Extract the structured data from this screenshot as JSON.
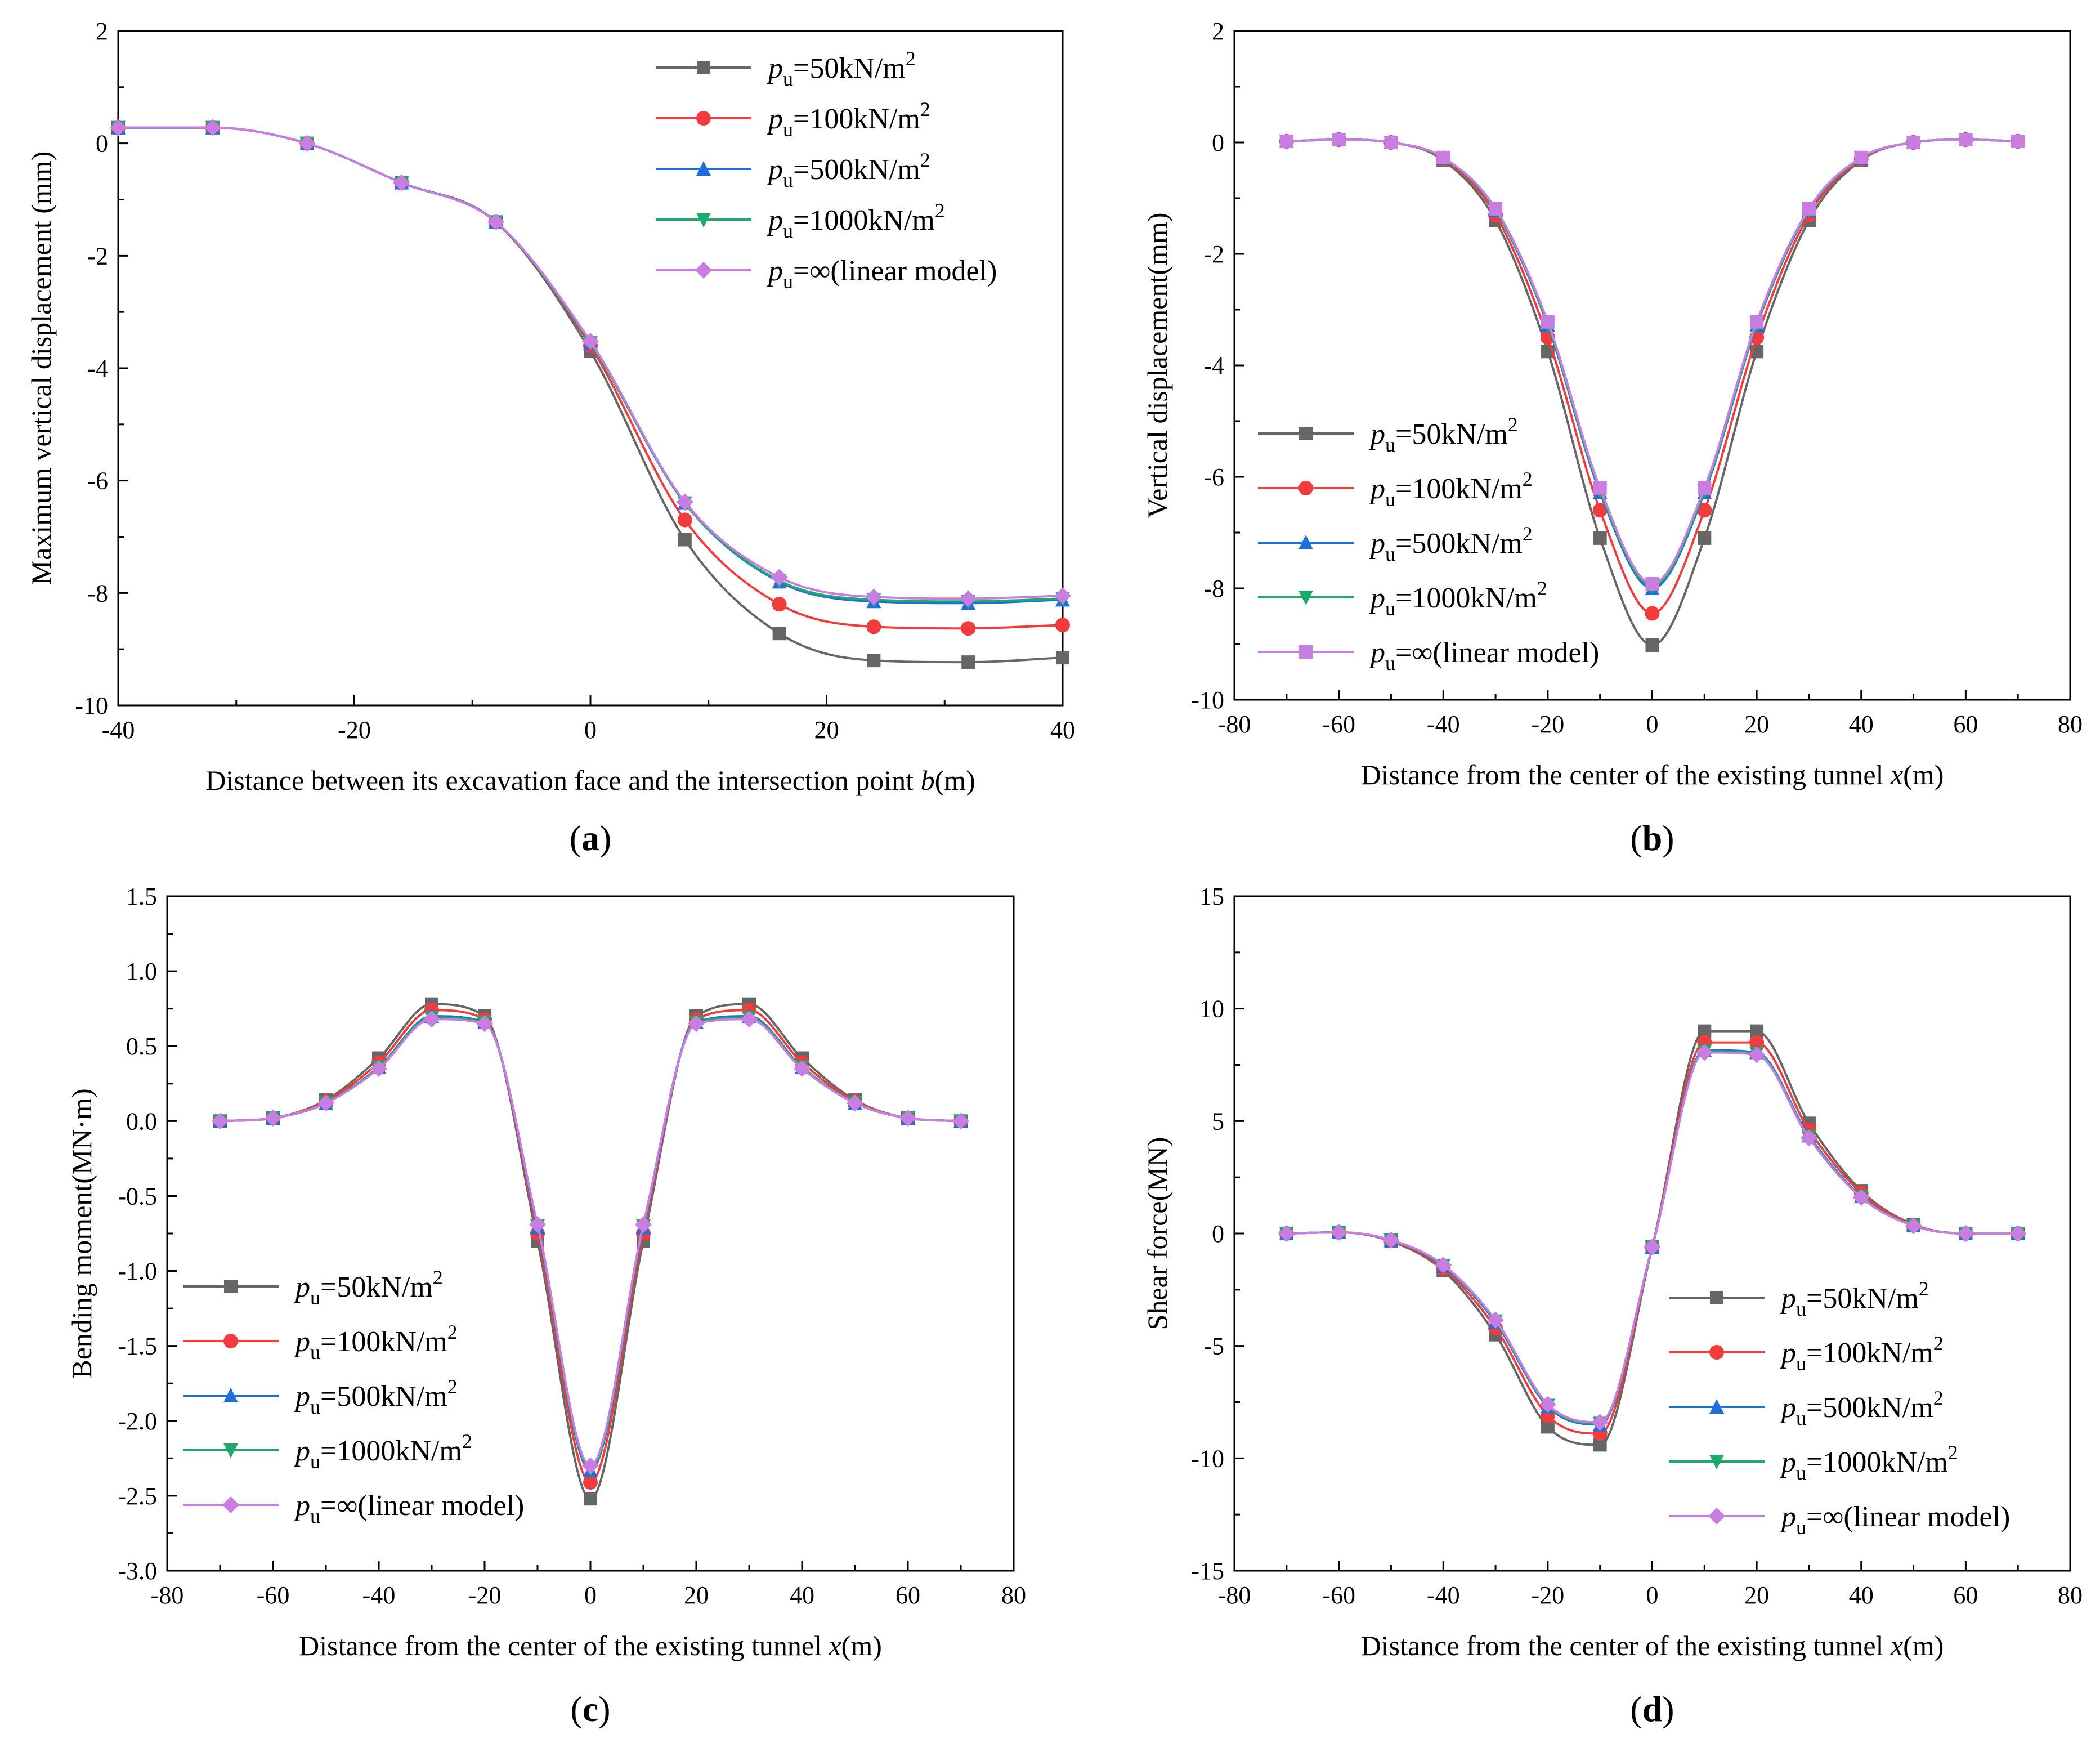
{
  "figure": {
    "legend_prefix": "p",
    "legend_subscript": "u",
    "legend_unit_superscript": "2",
    "panels": [
      "(a)",
      "(b)",
      "(c)",
      "(d)"
    ]
  },
  "chart_data": [
    {
      "id": "a",
      "type": "line",
      "panel_label": "a",
      "xlabel_pre": "Distance between its excavation face and the intersection point ",
      "xlabel_var": "b",
      "xlabel_post": "(m)",
      "ylabel": "Maximum vertical displacement (mm)",
      "xlim": [
        -40,
        40
      ],
      "ylim": [
        -10,
        2
      ],
      "xticks": [
        -40,
        -20,
        0,
        20,
        40
      ],
      "xtick_labels": [
        "-40",
        "-20",
        "0",
        "20",
        "40"
      ],
      "yticks": [
        -10,
        -8,
        -6,
        -4,
        -2,
        0,
        2
      ],
      "ytick_labels": [
        "-10",
        "-8",
        "-6",
        "-4",
        "-2",
        "0",
        "2"
      ],
      "legend_position": "top-right",
      "x": [
        -40,
        -32,
        -24,
        -16,
        -8,
        0,
        8,
        16,
        24,
        32,
        40
      ],
      "series": [
        {
          "name": "=50kN/m",
          "label_suffix": "",
          "color": "#666666",
          "marker": "square",
          "values": [
            0.28,
            0.28,
            0.0,
            -0.7,
            -1.4,
            -3.7,
            -7.05,
            -8.72,
            -9.2,
            -9.23,
            -9.15
          ]
        },
        {
          "name": "=100kN/m",
          "label_suffix": "",
          "color": "#f03c3c",
          "marker": "circle",
          "values": [
            0.28,
            0.28,
            0.0,
            -0.7,
            -1.4,
            -3.6,
            -6.7,
            -8.2,
            -8.6,
            -8.63,
            -8.57
          ]
        },
        {
          "name": "=500kN/m",
          "label_suffix": "",
          "color": "#1f6fd6",
          "marker": "triangle-up",
          "values": [
            0.28,
            0.28,
            0.0,
            -0.7,
            -1.4,
            -3.55,
            -6.4,
            -7.8,
            -8.15,
            -8.18,
            -8.12
          ]
        },
        {
          "name": "=1000kN/m",
          "label_suffix": "",
          "color": "#1fa86b",
          "marker": "triangle-down",
          "values": [
            0.28,
            0.28,
            0.0,
            -0.7,
            -1.4,
            -3.55,
            -6.4,
            -7.78,
            -8.12,
            -8.15,
            -8.1
          ]
        },
        {
          "name": "=∞(linear model)",
          "label_suffix": "",
          "color": "#c77ee0",
          "marker": "diamond",
          "values": [
            0.28,
            0.28,
            0.0,
            -0.7,
            -1.4,
            -3.52,
            -6.38,
            -7.72,
            -8.07,
            -8.1,
            -8.05
          ]
        }
      ]
    },
    {
      "id": "b",
      "type": "line",
      "panel_label": "b",
      "xlabel_pre": "Distance from the center of the existing tunnel ",
      "xlabel_var": "x",
      "xlabel_post": "(m)",
      "ylabel": "Vertical displacement(mm)",
      "xlim": [
        -80,
        80
      ],
      "ylim": [
        -10,
        2
      ],
      "xticks": [
        -80,
        -60,
        -40,
        -20,
        0,
        20,
        40,
        60,
        80
      ],
      "xtick_labels": [
        "-80",
        "-60",
        "-40",
        "-20",
        "0",
        "20",
        "40",
        "60",
        "80"
      ],
      "yticks": [
        -10,
        -8,
        -6,
        -4,
        -2,
        0,
        2
      ],
      "ytick_labels": [
        "-10",
        "-8",
        "-6",
        "-4",
        "-2",
        "0",
        "2"
      ],
      "legend_position": "bottom-left",
      "x": [
        -70,
        -60,
        -50,
        -40,
        -30,
        -20,
        -10,
        0,
        10,
        20,
        30,
        40,
        50,
        60,
        70
      ],
      "series": [
        {
          "name": "=50kN/m",
          "color": "#666666",
          "marker": "square",
          "values": [
            0.02,
            0.05,
            0.0,
            -0.32,
            -1.4,
            -3.75,
            -7.1,
            -9.02,
            -7.1,
            -3.75,
            -1.4,
            -0.32,
            0.0,
            0.05,
            0.02
          ]
        },
        {
          "name": "=100kN/m",
          "color": "#f03c3c",
          "marker": "circle",
          "values": [
            0.02,
            0.05,
            0.0,
            -0.3,
            -1.3,
            -3.5,
            -6.6,
            -8.45,
            -6.6,
            -3.5,
            -1.3,
            -0.3,
            0.0,
            0.05,
            0.02
          ]
        },
        {
          "name": "=500kN/m",
          "color": "#1f6fd6",
          "marker": "triangle-up",
          "values": [
            0.02,
            0.05,
            0.0,
            -0.28,
            -1.22,
            -3.28,
            -6.28,
            -8.0,
            -6.28,
            -3.28,
            -1.22,
            -0.28,
            0.0,
            0.05,
            0.02
          ]
        },
        {
          "name": "=1000kN/m",
          "color": "#1fa86b",
          "marker": "triangle-down",
          "values": [
            0.02,
            0.05,
            0.0,
            -0.28,
            -1.21,
            -3.26,
            -6.25,
            -7.96,
            -6.25,
            -3.26,
            -1.21,
            -0.28,
            0.0,
            0.05,
            0.02
          ]
        },
        {
          "name": "=∞(linear model)",
          "color": "#c77ee0",
          "marker": "square",
          "values": [
            0.02,
            0.05,
            0.0,
            -0.27,
            -1.19,
            -3.22,
            -6.2,
            -7.92,
            -6.2,
            -3.22,
            -1.19,
            -0.27,
            0.0,
            0.05,
            0.02
          ]
        }
      ]
    },
    {
      "id": "c",
      "type": "line",
      "panel_label": "c",
      "xlabel_pre": "Distance from the center of the existing tunnel  ",
      "xlabel_var": "x",
      "xlabel_post": "(m)",
      "ylabel": "Bending moment(MN·m)",
      "xlim": [
        -80,
        80
      ],
      "ylim": [
        -3.0,
        1.5
      ],
      "xticks": [
        -80,
        -60,
        -40,
        -20,
        0,
        20,
        40,
        60,
        80
      ],
      "xtick_labels": [
        "-80",
        "-60",
        "-40",
        "-20",
        "0",
        "20",
        "40",
        "60",
        "80"
      ],
      "yticks": [
        -3.0,
        -2.5,
        -2.0,
        -1.5,
        -1.0,
        -0.5,
        0.0,
        0.5,
        1.0,
        1.5
      ],
      "ytick_labels": [
        "-3.0",
        "-2.5",
        "-2.0",
        "-1.5",
        "-1.0",
        "-0.5",
        "0.0",
        "0.5",
        "1.0",
        "1.5"
      ],
      "legend_position": "bottom-left",
      "x": [
        -70,
        -60,
        -50,
        -40,
        -30,
        -20,
        -10,
        0,
        10,
        20,
        30,
        40,
        50,
        60,
        70
      ],
      "series": [
        {
          "name": "=50kN/m",
          "color": "#666666",
          "marker": "square",
          "values": [
            0.0,
            0.02,
            0.14,
            0.42,
            0.78,
            0.7,
            -0.8,
            -2.52,
            -0.8,
            0.7,
            0.78,
            0.42,
            0.14,
            0.02,
            0.0
          ]
        },
        {
          "name": "=100kN/m",
          "color": "#f03c3c",
          "marker": "circle",
          "values": [
            0.0,
            0.02,
            0.13,
            0.39,
            0.74,
            0.68,
            -0.75,
            -2.41,
            -0.75,
            0.68,
            0.74,
            0.39,
            0.13,
            0.02,
            0.0
          ]
        },
        {
          "name": "=500kN/m",
          "color": "#1f6fd6",
          "marker": "triangle-up",
          "values": [
            0.0,
            0.02,
            0.12,
            0.36,
            0.7,
            0.66,
            -0.71,
            -2.33,
            -0.71,
            0.66,
            0.7,
            0.36,
            0.12,
            0.02,
            0.0
          ]
        },
        {
          "name": "=1000kN/m",
          "color": "#1fa86b",
          "marker": "triangle-down",
          "values": [
            0.0,
            0.02,
            0.12,
            0.36,
            0.69,
            0.66,
            -0.7,
            -2.32,
            -0.7,
            0.66,
            0.69,
            0.36,
            0.12,
            0.02,
            0.0
          ]
        },
        {
          "name": "=∞(linear model)",
          "color": "#c77ee0",
          "marker": "diamond",
          "values": [
            0.0,
            0.02,
            0.12,
            0.35,
            0.68,
            0.65,
            -0.69,
            -2.3,
            -0.69,
            0.65,
            0.68,
            0.35,
            0.12,
            0.02,
            0.0
          ]
        }
      ]
    },
    {
      "id": "d",
      "type": "line",
      "panel_label": "d",
      "xlabel_pre": "Distance from the center of the existing tunnel  ",
      "xlabel_var": "x",
      "xlabel_post": "(m)",
      "ylabel": "Shear force(MN)",
      "xlim": [
        -80,
        80
      ],
      "ylim": [
        -15,
        15
      ],
      "xticks": [
        -80,
        -60,
        -40,
        -20,
        0,
        20,
        40,
        60,
        80
      ],
      "xtick_labels": [
        "-80",
        "-60",
        "-40",
        "-20",
        "0",
        "20",
        "40",
        "60",
        "80"
      ],
      "yticks": [
        -15,
        -10,
        -5,
        0,
        5,
        10,
        15
      ],
      "ytick_labels": [
        "-15",
        "-10",
        "-5",
        "0",
        "5",
        "10",
        "15"
      ],
      "legend_position": "bottom-right",
      "x": [
        -70,
        -60,
        -50,
        -40,
        -30,
        -20,
        -10,
        0,
        10,
        20,
        30,
        40,
        50,
        60,
        70
      ],
      "series": [
        {
          "name": "=50kN/m",
          "color": "#666666",
          "marker": "square",
          "values": [
            0.0,
            0.05,
            -0.35,
            -1.65,
            -4.5,
            -8.6,
            -9.4,
            -0.6,
            9.0,
            9.0,
            4.9,
            1.9,
            0.4,
            0.0,
            0.0
          ]
        },
        {
          "name": "=100kN/m",
          "color": "#f03c3c",
          "marker": "circle",
          "values": [
            0.0,
            0.05,
            -0.33,
            -1.55,
            -4.2,
            -8.1,
            -8.9,
            -0.6,
            8.5,
            8.5,
            4.6,
            1.8,
            0.38,
            0.0,
            0.0
          ]
        },
        {
          "name": "=500kN/m",
          "color": "#1f6fd6",
          "marker": "triangle-up",
          "values": [
            0.0,
            0.05,
            -0.3,
            -1.45,
            -3.95,
            -7.7,
            -8.5,
            -0.6,
            8.15,
            8.05,
            4.35,
            1.65,
            0.35,
            0.0,
            0.0
          ]
        },
        {
          "name": "=1000kN/m",
          "color": "#1fa86b",
          "marker": "triangle-down",
          "values": [
            0.0,
            0.05,
            -0.3,
            -1.43,
            -3.9,
            -7.65,
            -8.45,
            -0.6,
            8.1,
            8.0,
            4.3,
            1.62,
            0.35,
            0.0,
            0.0
          ]
        },
        {
          "name": "=∞(linear model)",
          "color": "#c77ee0",
          "marker": "diamond",
          "values": [
            0.0,
            0.05,
            -0.29,
            -1.4,
            -3.85,
            -7.6,
            -8.4,
            -0.6,
            8.05,
            7.95,
            4.25,
            1.6,
            0.34,
            0.0,
            0.0
          ]
        }
      ]
    }
  ]
}
